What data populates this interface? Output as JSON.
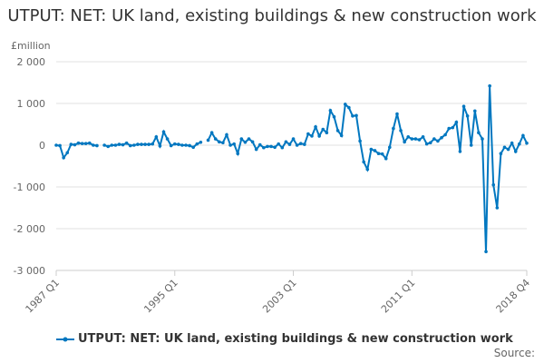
{
  "chart_data": {
    "type": "line",
    "title": "UTPUT: NET: UK land, existing buildings & new construction work",
    "ylabel": "£million",
    "ylim": [
      -3000,
      2000
    ],
    "yticks": [
      2000,
      1000,
      0,
      -1000,
      -2000,
      -3000
    ],
    "ytick_labels": [
      "2 000",
      "1 000",
      "0",
      "-1 000",
      "-2 000",
      "-3 000"
    ],
    "x_start": "1987 Q1",
    "x_end": "2018 Q4",
    "xtick_labels": [
      "1987 Q1",
      "1995 Q1",
      "2003 Q1",
      "2011 Q1",
      "2018 Q4"
    ],
    "xtick_index": [
      0,
      32,
      64,
      96,
      127
    ],
    "grid": true,
    "legend_position": "bottom",
    "color": "#0077c0",
    "series": [
      {
        "name": "UTPUT: NET: UK land, existing buildings & new construction work",
        "values": [
          0,
          -10,
          -300,
          -180,
          20,
          10,
          50,
          40,
          40,
          50,
          0,
          -10,
          null,
          0,
          -30,
          0,
          0,
          20,
          10,
          50,
          -10,
          0,
          20,
          20,
          20,
          20,
          30,
          200,
          -20,
          320,
          150,
          -10,
          30,
          20,
          0,
          0,
          -10,
          -50,
          30,
          70,
          null,
          120,
          300,
          150,
          80,
          60,
          250,
          0,
          30,
          -200,
          150,
          70,
          150,
          80,
          -100,
          10,
          -60,
          -30,
          -30,
          -50,
          30,
          -60,
          80,
          20,
          150,
          0,
          40,
          20,
          270,
          220,
          440,
          220,
          380,
          300,
          830,
          680,
          350,
          230,
          980,
          900,
          700,
          710,
          100,
          -400,
          -580,
          -100,
          -130,
          -200,
          -210,
          -320,
          -50,
          400,
          750,
          350,
          80,
          200,
          150,
          150,
          130,
          200,
          30,
          60,
          150,
          100,
          180,
          250,
          400,
          420,
          550,
          -150,
          930,
          700,
          0,
          820,
          300,
          150,
          -2550,
          1420,
          -950,
          -1500,
          -200,
          -50,
          -100,
          50,
          -150,
          30,
          230,
          50
        ]
      }
    ]
  },
  "source_label": "Source:"
}
